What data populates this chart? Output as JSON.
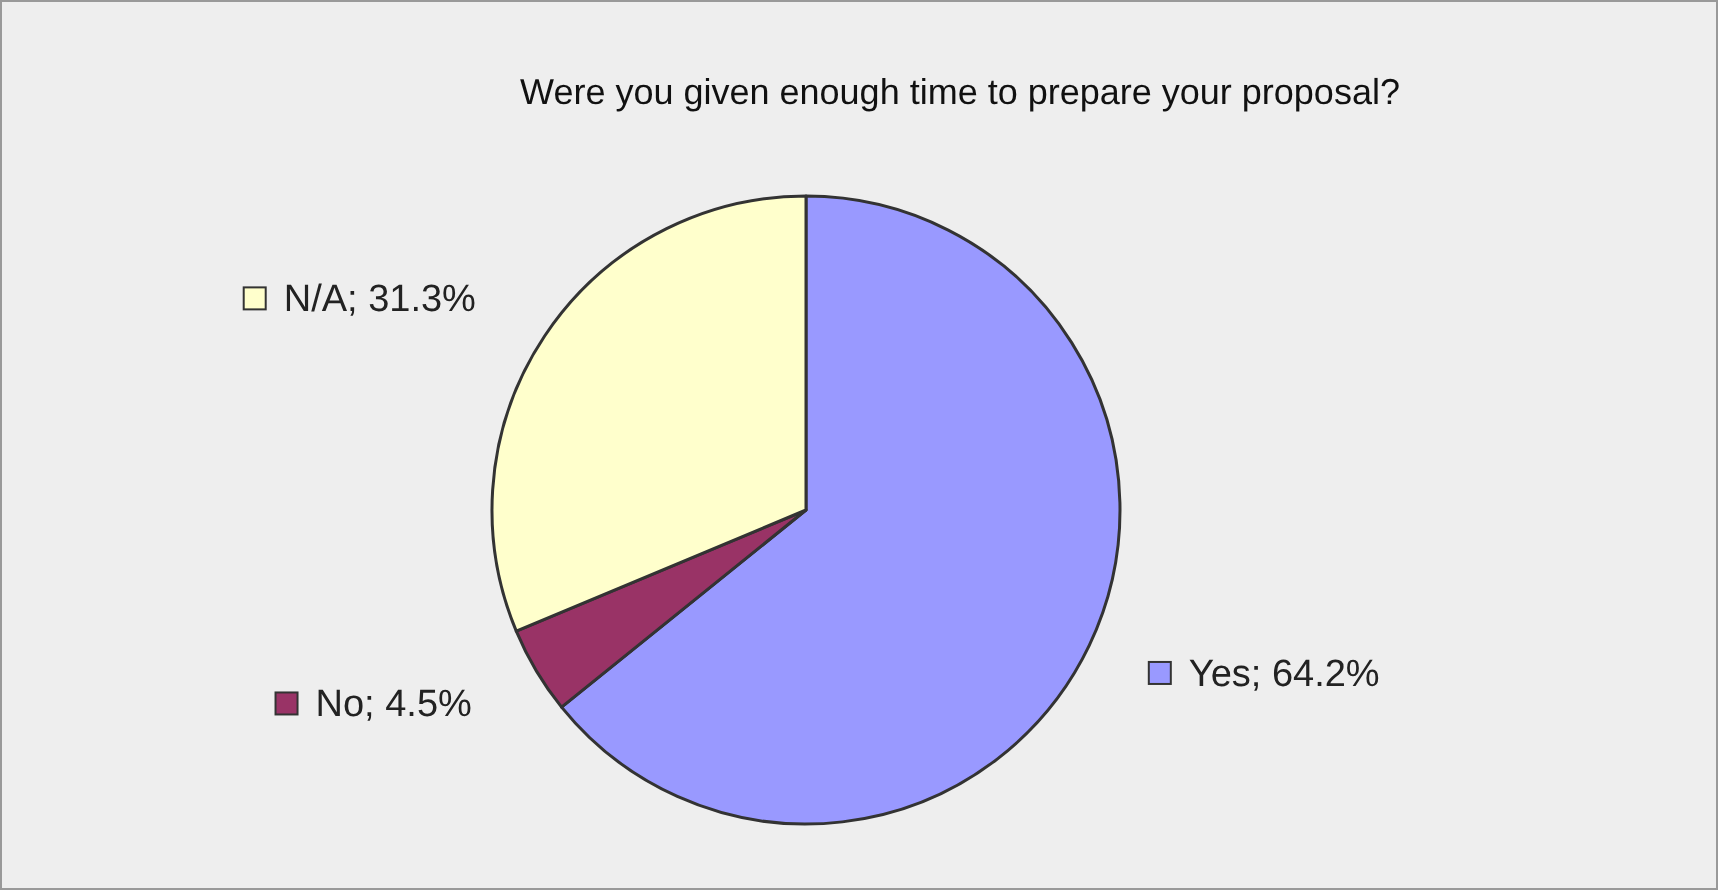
{
  "chart_data": {
    "type": "pie",
    "title": "Were you given enough time to prepare your proposal?",
    "categories": [
      "Yes",
      "No",
      "N/A"
    ],
    "values": [
      64.2,
      4.5,
      31.3
    ],
    "value_labels": [
      "64.2%",
      "4.5%",
      "31.3%"
    ],
    "colors": [
      "#9999ff",
      "#993366",
      "#ffffcc"
    ],
    "legend": "left"
  }
}
